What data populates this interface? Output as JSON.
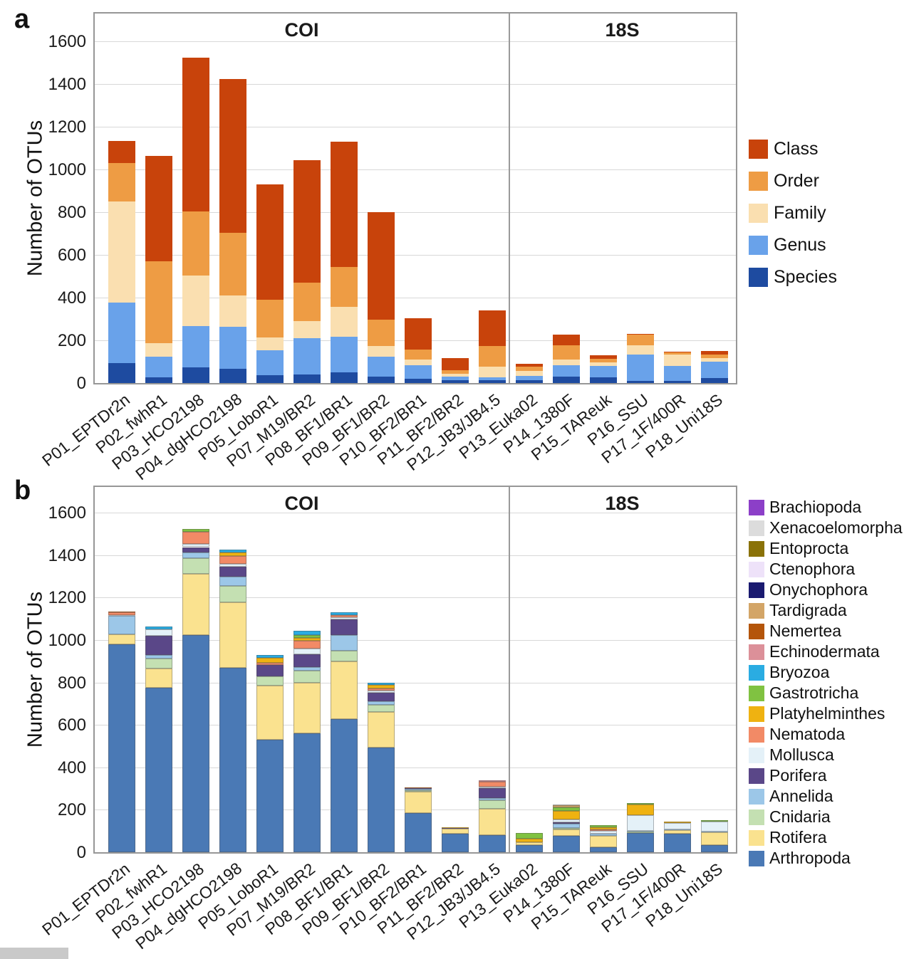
{
  "figure": {
    "panels": [
      {
        "label": "a",
        "y_axis_title": "Number of OTUs"
      },
      {
        "label": "b",
        "y_axis_title": "Number of OTUs"
      }
    ]
  },
  "chart_data": [
    {
      "type": "bar",
      "stacked": true,
      "ylabel": "Number of OTUs",
      "ylim": [
        0,
        1740
      ],
      "yticks": [
        0,
        200,
        400,
        600,
        800,
        1000,
        1200,
        1400,
        1600
      ],
      "grid": "horizontal",
      "legend_position": "right",
      "facets": [
        {
          "title": "COI",
          "category_indices": [
            0,
            10
          ]
        },
        {
          "title": "18S",
          "category_indices": [
            11,
            16
          ]
        }
      ],
      "categories": [
        "P01_EPTDr2n",
        "P02_fwhR1",
        "P03_HCO2198",
        "P04_dgHCO2198",
        "P05_LoboR1",
        "P07_M19/BR2",
        "P08_BF1/BR1",
        "P09_BF1/BR2",
        "P10_BF2/BR1",
        "P11_BF2/BR2",
        "P12_JB3/JB4.5",
        "P13_Euka02",
        "P14_1380F",
        "P15_TAReuk",
        "P16_SSU",
        "P17_1F/400R",
        "P18_Uni18S"
      ],
      "legend_top_to_bottom": [
        "Class",
        "Order",
        "Family",
        "Genus",
        "Species"
      ],
      "series": [
        {
          "name": "Species",
          "color": "#1e4ba0",
          "values": [
            93,
            28,
            73,
            67,
            37,
            40,
            50,
            29,
            20,
            12,
            13,
            15,
            30,
            28,
            11,
            10,
            22
          ]
        },
        {
          "name": "Genus",
          "color": "#69a2ea",
          "values": [
            284,
            96,
            194,
            196,
            116,
            171,
            167,
            94,
            63,
            18,
            15,
            20,
            53,
            51,
            121,
            69,
            78
          ]
        },
        {
          "name": "Family",
          "color": "#fadfb0",
          "values": [
            473,
            62,
            236,
            147,
            61,
            80,
            139,
            50,
            28,
            12,
            50,
            22,
            28,
            18,
            46,
            55,
            17
          ]
        },
        {
          "name": "Order",
          "color": "#ee9c44",
          "values": [
            180,
            384,
            302,
            295,
            176,
            179,
            189,
            124,
            45,
            18,
            96,
            21,
            67,
            17,
            48,
            9,
            17
          ]
        },
        {
          "name": "Class",
          "color": "#c8430b",
          "values": [
            105,
            495,
            720,
            720,
            540,
            575,
            585,
            503,
            149,
            57,
            166,
            13,
            48,
            15,
            5,
            3,
            16
          ]
        }
      ]
    },
    {
      "type": "bar",
      "stacked": true,
      "ylabel": "Number of OTUs",
      "ylim": [
        0,
        1740
      ],
      "yticks": [
        0,
        200,
        400,
        600,
        800,
        1000,
        1200,
        1400,
        1600
      ],
      "grid": "horizontal",
      "legend_position": "right",
      "facets": [
        {
          "title": "COI",
          "category_indices": [
            0,
            10
          ]
        },
        {
          "title": "18S",
          "category_indices": [
            11,
            16
          ]
        }
      ],
      "categories": [
        "P01_EPTDr2n",
        "P02_fwhR1",
        "P03_HCO2198",
        "P04_dgHCO2198",
        "P05_LoboR1",
        "P07_M19/BR2",
        "P08_BF1/BR1",
        "P09_BF1/BR2",
        "P10_BF2/BR1",
        "P11_BF2/BR2",
        "P12_JB3/JB4.5",
        "P13_Euka02",
        "P14_1380F",
        "P15_TAReuk",
        "P16_SSU",
        "P17_1F/400R",
        "P18_Uni18S"
      ],
      "legend_top_to_bottom": [
        "Brachiopoda",
        "Xenacoelomorpha",
        "Entoprocta",
        "Ctenophora",
        "Onychophora",
        "Tardigrada",
        "Nemertea",
        "Echinodermata",
        "Bryozoa",
        "Gastrotricha",
        "Platyhelminthes",
        "Nematoda",
        "Mollusca",
        "Porifera",
        "Annelida",
        "Cnidaria",
        "Rotifera",
        "Arthropoda"
      ],
      "series": [
        {
          "name": "Arthropoda",
          "color": "#4a79b5",
          "values": [
            980,
            775,
            1023,
            868,
            530,
            560,
            627,
            495,
            185,
            88,
            82,
            35,
            78,
            23,
            92,
            88,
            35
          ]
        },
        {
          "name": "Rotifera",
          "color": "#fae28f",
          "values": [
            48,
            90,
            290,
            311,
            255,
            240,
            271,
            165,
            100,
            24,
            122,
            12,
            28,
            53,
            0,
            16,
            58
          ]
        },
        {
          "name": "Cnidaria",
          "color": "#c4e0b2",
          "values": [
            0,
            49,
            74,
            77,
            45,
            55,
            53,
            36,
            6,
            0,
            42,
            0,
            8,
            0,
            5,
            0,
            0
          ]
        },
        {
          "name": "Annelida",
          "color": "#9cc7e8",
          "values": [
            85,
            16,
            27,
            43,
            0,
            18,
            73,
            14,
            7,
            0,
            8,
            0,
            19,
            10,
            4,
            3,
            4
          ]
        },
        {
          "name": "Porifera",
          "color": "#5a4788",
          "values": [
            0,
            90,
            24,
            46,
            51,
            61,
            75,
            43,
            5,
            2,
            48,
            0,
            9,
            0,
            0,
            0,
            2
          ]
        },
        {
          "name": "Mollusca",
          "color": "#e4f1f8",
          "values": [
            5,
            30,
            15,
            14,
            0,
            25,
            8,
            10,
            0,
            0,
            6,
            0,
            12,
            15,
            75,
            31,
            45
          ]
        },
        {
          "name": "Nematoda",
          "color": "#f28a66",
          "values": [
            12,
            0,
            58,
            38,
            11,
            37,
            9,
            10,
            0,
            0,
            25,
            0,
            0,
            8,
            0,
            0,
            0
          ]
        },
        {
          "name": "Platyhelminthes",
          "color": "#efb211",
          "values": [
            0,
            0,
            0,
            17,
            25,
            14,
            0,
            14,
            0,
            3,
            0,
            18,
            42,
            10,
            49,
            8,
            0
          ]
        },
        {
          "name": "Gastrotricha",
          "color": "#80c241",
          "values": [
            0,
            0,
            14,
            0,
            0,
            13,
            0,
            0,
            0,
            0,
            0,
            26,
            15,
            10,
            6,
            0,
            6
          ]
        },
        {
          "name": "Bryozoa",
          "color": "#2aace2",
          "values": [
            0,
            15,
            0,
            11,
            13,
            22,
            14,
            13,
            0,
            0,
            0,
            0,
            0,
            0,
            0,
            0,
            0
          ]
        },
        {
          "name": "Echinodermata",
          "color": "#dc9099",
          "values": [
            0,
            0,
            0,
            0,
            0,
            0,
            0,
            0,
            0,
            0,
            7,
            0,
            0,
            0,
            0,
            0,
            0
          ]
        },
        {
          "name": "Nemertea",
          "color": "#b4550a",
          "values": [
            5,
            0,
            0,
            0,
            0,
            0,
            0,
            0,
            2,
            0,
            0,
            0,
            0,
            0,
            0,
            0,
            0
          ]
        },
        {
          "name": "Tardigrada",
          "color": "#d3a567",
          "values": [
            0,
            0,
            0,
            0,
            0,
            0,
            0,
            0,
            0,
            0,
            0,
            0,
            9,
            0,
            0,
            0,
            0
          ]
        },
        {
          "name": "Onychophora",
          "color": "#1a1a70",
          "values": [
            0,
            0,
            0,
            0,
            0,
            0,
            0,
            0,
            0,
            0,
            0,
            0,
            0,
            0,
            0,
            0,
            0
          ]
        },
        {
          "name": "Ctenophora",
          "color": "#eee2f9",
          "values": [
            0,
            0,
            0,
            0,
            0,
            0,
            0,
            0,
            0,
            0,
            0,
            0,
            0,
            0,
            0,
            0,
            0
          ]
        },
        {
          "name": "Entoprocta",
          "color": "#8a7208",
          "values": [
            0,
            0,
            0,
            0,
            0,
            0,
            0,
            0,
            0,
            0,
            0,
            0,
            0,
            0,
            0,
            0,
            0
          ]
        },
        {
          "name": "Xenacoelomorpha",
          "color": "#dcdcdc",
          "values": [
            0,
            0,
            0,
            0,
            0,
            0,
            0,
            0,
            0,
            0,
            0,
            0,
            6,
            0,
            0,
            0,
            0
          ]
        },
        {
          "name": "Brachiopoda",
          "color": "#8c3fc8",
          "values": [
            0,
            0,
            0,
            0,
            0,
            0,
            0,
            0,
            0,
            0,
            0,
            0,
            0,
            0,
            0,
            0,
            0
          ]
        }
      ]
    }
  ]
}
